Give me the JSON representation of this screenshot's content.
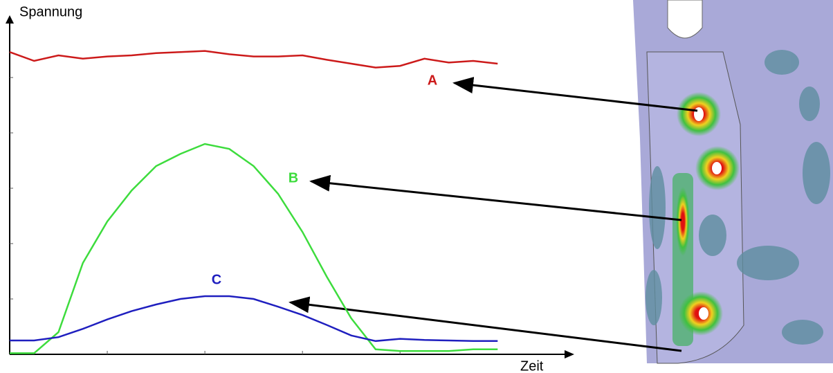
{
  "chart_data": {
    "type": "line",
    "y_label": "Spannung",
    "x_label": "Zeit",
    "x": [
      0,
      0.25,
      0.5,
      0.75,
      1,
      1.25,
      1.5,
      1.75,
      2,
      2.25,
      2.5,
      2.75,
      3,
      3.25,
      3.5,
      3.75,
      4,
      4.25,
      4.5,
      4.75,
      5
    ],
    "xlim": [
      0,
      5.7
    ],
    "xticks": [
      1,
      2,
      3,
      4
    ],
    "ylim": [
      0,
      6
    ],
    "yticks": [
      1,
      2,
      3,
      4,
      5
    ],
    "series": [
      {
        "name": "A",
        "color": "#cc1a1a",
        "values": [
          5.46,
          5.3,
          5.4,
          5.34,
          5.38,
          5.4,
          5.44,
          5.46,
          5.48,
          5.42,
          5.38,
          5.38,
          5.4,
          5.32,
          5.25,
          5.18,
          5.21,
          5.34,
          5.27,
          5.3,
          5.25
        ]
      },
      {
        "name": "B",
        "color": "#3ddc3d",
        "values": [
          0.02,
          0.02,
          0.4,
          1.65,
          2.4,
          2.96,
          3.4,
          3.62,
          3.8,
          3.71,
          3.4,
          2.9,
          2.21,
          1.4,
          0.65,
          0.09,
          0.06,
          0.06,
          0.06,
          0.09,
          0.09
        ]
      },
      {
        "name": "C",
        "color": "#1f1fbf",
        "values": [
          0.25,
          0.25,
          0.31,
          0.46,
          0.63,
          0.78,
          0.9,
          1.0,
          1.05,
          1.05,
          1.0,
          0.86,
          0.71,
          0.53,
          0.34,
          0.24,
          0.28,
          0.26,
          0.25,
          0.24,
          0.24
        ]
      }
    ]
  }
}
